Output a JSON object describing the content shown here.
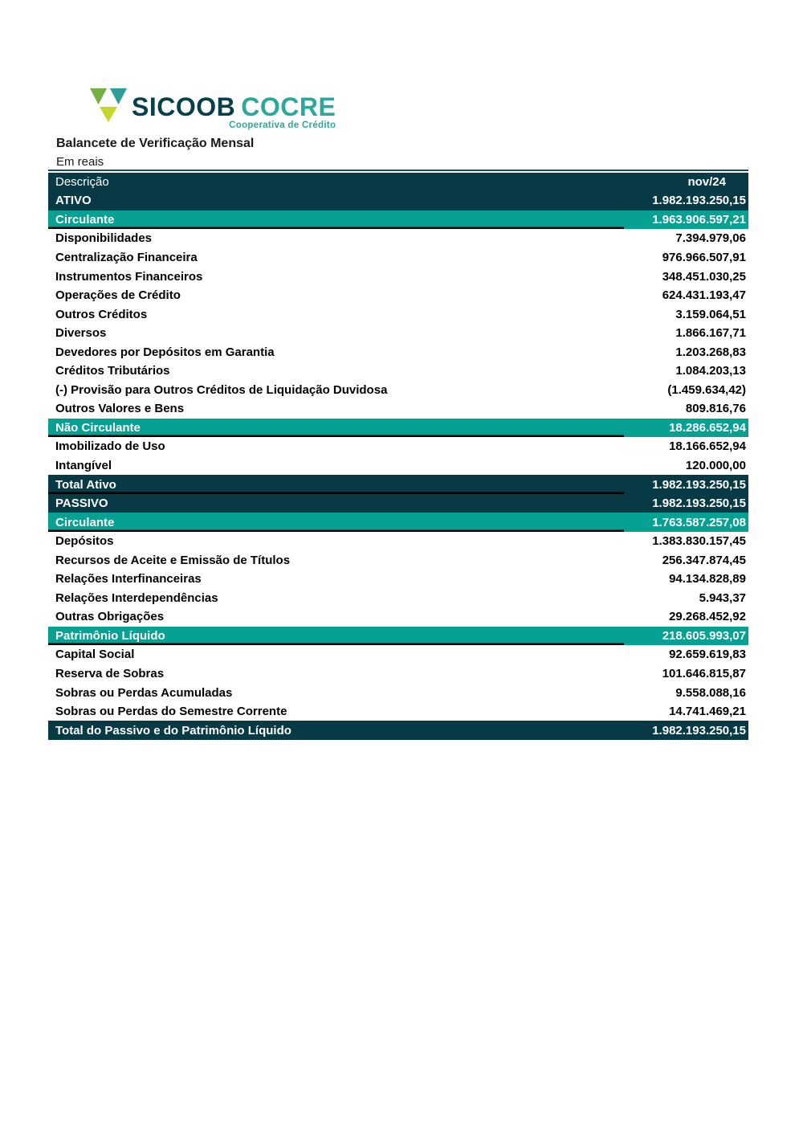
{
  "logo": {
    "sicoob": "SICOOB",
    "cocre": "COCRE",
    "tagline": "Cooperativa de Crédito"
  },
  "header": {
    "title": "Balancete de Verificação Mensal",
    "subtitle": "Em reais"
  },
  "table": {
    "header": {
      "description": "Descrição",
      "value": "nov/24"
    },
    "rows": [
      {
        "label": "ATIVO",
        "value": "1.982.193.250,15",
        "style": "dark",
        "underline": false
      },
      {
        "label": "Circulante",
        "value": "1.963.906.597,21",
        "style": "teal",
        "underline": true
      },
      {
        "label": "Disponibilidades",
        "value": "7.394.979,06",
        "style": "plain",
        "underline": false
      },
      {
        "label": "Centralização Financeira",
        "value": "976.966.507,91",
        "style": "plain",
        "underline": false
      },
      {
        "label": "Instrumentos Financeiros",
        "value": "348.451.030,25",
        "style": "plain",
        "underline": false
      },
      {
        "label": "Operações de Crédito",
        "value": "624.431.193,47",
        "style": "plain",
        "underline": false
      },
      {
        "label": "Outros Créditos",
        "value": "3.159.064,51",
        "style": "plain",
        "underline": false
      },
      {
        "label": "Diversos",
        "value": "1.866.167,71",
        "style": "plain",
        "underline": false
      },
      {
        "label": "Devedores por Depósitos em Garantia",
        "value": "1.203.268,83",
        "style": "plain",
        "underline": false
      },
      {
        "label": "Créditos Tributários",
        "value": "1.084.203,13",
        "style": "plain",
        "underline": false
      },
      {
        "label": "(-) Provisão para Outros Créditos de Liquidação Duvidosa",
        "value": "(1.459.634,42)",
        "style": "plain",
        "underline": false
      },
      {
        "label": "Outros Valores e Bens",
        "value": "809.816,76",
        "style": "plain",
        "underline": false
      },
      {
        "label": "Não Circulante",
        "value": "18.286.652,94",
        "style": "teal",
        "underline": true
      },
      {
        "label": "Imobilizado de Uso",
        "value": "18.166.652,94",
        "style": "plain",
        "underline": false
      },
      {
        "label": "Intangível",
        "value": "120.000,00",
        "style": "plain",
        "underline": false
      },
      {
        "label": "Total Ativo",
        "value": "1.982.193.250,15",
        "style": "dark",
        "underline": true
      },
      {
        "label": "PASSIVO",
        "value": "1.982.193.250,15",
        "style": "dark",
        "underline": false
      },
      {
        "label": "Circulante",
        "value": "1.763.587.257,08",
        "style": "teal",
        "underline": true
      },
      {
        "label": "Depósitos",
        "value": "1.383.830.157,45",
        "style": "plain",
        "underline": false
      },
      {
        "label": "Recursos de Aceite e Emissão de Títulos",
        "value": "256.347.874,45",
        "style": "plain",
        "underline": false
      },
      {
        "label": "Relações Interfinanceiras",
        "value": "94.134.828,89",
        "style": "plain",
        "underline": false
      },
      {
        "label": "Relações Interdependências",
        "value": "5.943,37",
        "style": "plain",
        "underline": false
      },
      {
        "label": "Outras Obrigações",
        "value": "29.268.452,92",
        "style": "plain",
        "underline": false
      },
      {
        "label": "Patrimônio Líquido",
        "value": "218.605.993,07",
        "style": "teal",
        "underline": true
      },
      {
        "label": "Capital Social",
        "value": "92.659.619,83",
        "style": "plain",
        "underline": false
      },
      {
        "label": "Reserva de Sobras",
        "value": "101.646.815,87",
        "style": "plain",
        "underline": false
      },
      {
        "label": "Sobras ou Perdas Acumuladas",
        "value": "9.558.088,16",
        "style": "plain",
        "underline": false
      },
      {
        "label": "Sobras ou Perdas do Semestre Corrente",
        "value": "14.741.469,21",
        "style": "plain",
        "underline": false
      },
      {
        "label": "Total do Passivo e do Patrimônio Líquido",
        "value": "1.982.193.250,15",
        "style": "dark",
        "underline": false
      }
    ]
  },
  "colors": {
    "dark_row_bg": "#083a46",
    "teal_row_bg": "#06a193",
    "accent_border": "#1e4a66",
    "sicoob_text": "#06404b",
    "cocre_text": "#2ba89c",
    "logo_green": "#76b043",
    "logo_teal": "#2d9f96",
    "logo_lime": "#c6d62f"
  }
}
